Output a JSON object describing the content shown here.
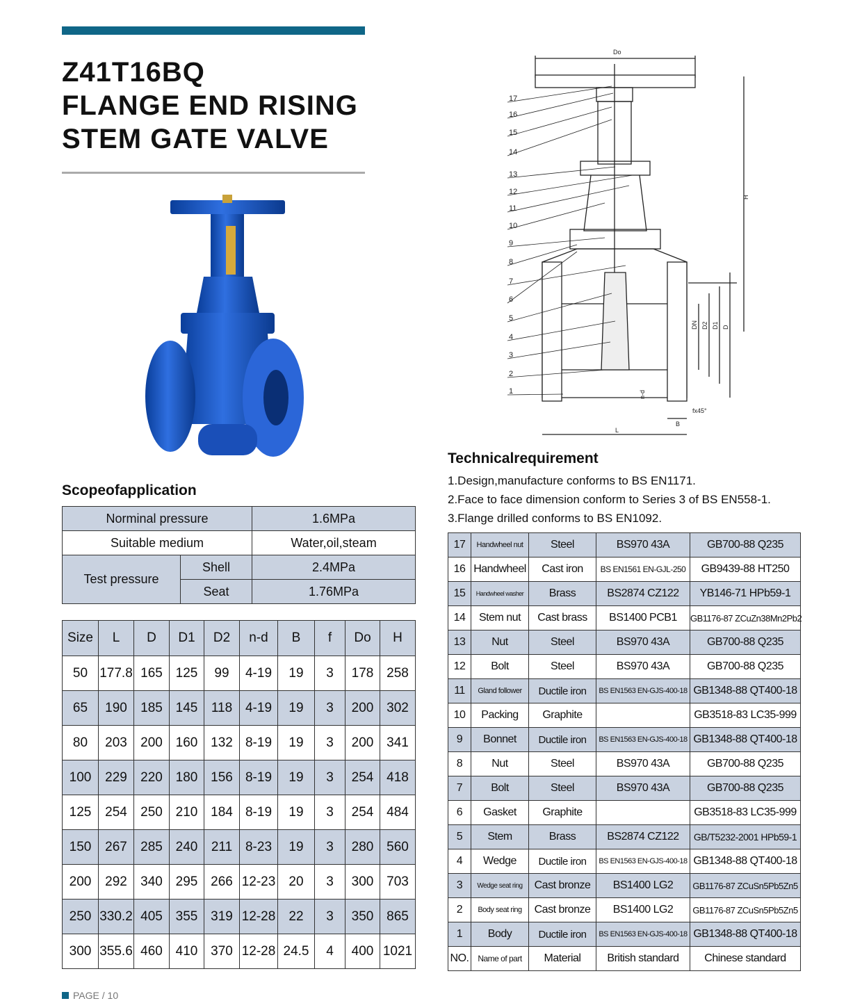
{
  "header": {
    "title_lines": [
      "Z41T16BQ",
      "FLANGE END RISING",
      "STEM GATE VALVE"
    ],
    "accent_color": "#0f6687"
  },
  "scope": {
    "heading": "Scopeofapplication",
    "nominal_label": "Norminal pressure",
    "nominal_value": "1.6MPa",
    "medium_label": "Suitable medium",
    "medium_value": "Water,oil,steam",
    "test_label": "Test pressure",
    "shell_label": "Shell",
    "shell_value": "2.4MPa",
    "seat_label": "Seat",
    "seat_value": "1.76MPa"
  },
  "sizes": {
    "headers": [
      "Size",
      "L",
      "D",
      "D1",
      "D2",
      "n-d",
      "B",
      "f",
      "Do",
      "H"
    ],
    "rows": [
      [
        "50",
        "177.8",
        "165",
        "125",
        "99",
        "4-19",
        "19",
        "3",
        "178",
        "258"
      ],
      [
        "65",
        "190",
        "185",
        "145",
        "118",
        "4-19",
        "19",
        "3",
        "200",
        "302"
      ],
      [
        "80",
        "203",
        "200",
        "160",
        "132",
        "8-19",
        "19",
        "3",
        "200",
        "341"
      ],
      [
        "100",
        "229",
        "220",
        "180",
        "156",
        "8-19",
        "19",
        "3",
        "254",
        "418"
      ],
      [
        "125",
        "254",
        "250",
        "210",
        "184",
        "8-19",
        "19",
        "3",
        "254",
        "484"
      ],
      [
        "150",
        "267",
        "285",
        "240",
        "211",
        "8-23",
        "19",
        "3",
        "280",
        "560"
      ],
      [
        "200",
        "292",
        "340",
        "295",
        "266",
        "12-23",
        "20",
        "3",
        "300",
        "703"
      ],
      [
        "250",
        "330.2",
        "405",
        "355",
        "319",
        "12-28",
        "22",
        "3",
        "350",
        "865"
      ],
      [
        "300",
        "355.6",
        "460",
        "410",
        "370",
        "12-28",
        "24.5",
        "4",
        "400",
        "1021"
      ]
    ]
  },
  "drawing": {
    "part_numbers": [
      "17",
      "16",
      "15",
      "14",
      "13",
      "12",
      "11",
      "10",
      "9",
      "8",
      "7",
      "6",
      "5",
      "4",
      "3",
      "2",
      "1"
    ],
    "dims": {
      "Do": "Do",
      "H": "H",
      "DN": "DN",
      "D2": "D2",
      "D1": "D1",
      "D": "D",
      "nd": "n-d",
      "f": "fx45°",
      "B": "B",
      "L": "L"
    }
  },
  "technical": {
    "heading": "Technicalrequirement",
    "lines": [
      "1.Design,manufacture conforms to BS EN1171.",
      "2.Face to face dimension conform to Series 3 of BS EN558-1.",
      "3.Flange drilled conforms to BS EN1092."
    ]
  },
  "parts": {
    "rows": [
      [
        "17",
        "Handwheel nut",
        "Steel",
        "BS970 43A",
        "GB700-88 Q235"
      ],
      [
        "16",
        "Handwheel",
        "Cast iron",
        "BS EN1561 EN-GJL-250",
        "GB9439-88 HT250"
      ],
      [
        "15",
        "Handwheel washer",
        "Brass",
        "BS2874 CZ122",
        "YB146-71 HPb59-1"
      ],
      [
        "14",
        "Stem nut",
        "Cast brass",
        "BS1400 PCB1",
        "GB1176-87 ZCuZn38Mn2Pb2"
      ],
      [
        "13",
        "Nut",
        "Steel",
        "BS970 43A",
        "GB700-88 Q235"
      ],
      [
        "12",
        "Bolt",
        "Steel",
        "BS970 43A",
        "GB700-88 Q235"
      ],
      [
        "11",
        "Gland follower",
        "Ductile iron",
        "BS EN1563 EN-GJS-400-18",
        "GB1348-88 QT400-18"
      ],
      [
        "10",
        "Packing",
        "Graphite",
        "",
        "GB3518-83 LC35-999"
      ],
      [
        "9",
        "Bonnet",
        "Ductile iron",
        "BS EN1563 EN-GJS-400-18",
        "GB1348-88 QT400-18"
      ],
      [
        "8",
        "Nut",
        "Steel",
        "BS970 43A",
        "GB700-88 Q235"
      ],
      [
        "7",
        "Bolt",
        "Steel",
        "BS970 43A",
        "GB700-88 Q235"
      ],
      [
        "6",
        "Gasket",
        "Graphite",
        "",
        "GB3518-83 LC35-999"
      ],
      [
        "5",
        "Stem",
        "Brass",
        "BS2874  CZ122",
        "GB/T5232-2001 HPb59-1"
      ],
      [
        "4",
        "Wedge",
        "Ductile iron",
        "BS EN1563 EN-GJS-400-18",
        "GB1348-88 QT400-18"
      ],
      [
        "3",
        "Wedge seat ring",
        "Cast bronze",
        "BS1400  LG2",
        "GB1176-87 ZCuSn5Pb5Zn5"
      ],
      [
        "2",
        "Body seat ring",
        "Cast bronze",
        "BS1400  LG2",
        "GB1176-87 ZCuSn5Pb5Zn5"
      ],
      [
        "1",
        "Body",
        "Ductile iron",
        "BS EN1563 EN-GJS-400-18",
        "GB1348-88 QT400-18"
      ]
    ],
    "footer": [
      "NO.",
      "Name of part",
      "Material",
      "British standard",
      "Chinese standard"
    ]
  },
  "footer": {
    "page_label": "PAGE / 10"
  }
}
